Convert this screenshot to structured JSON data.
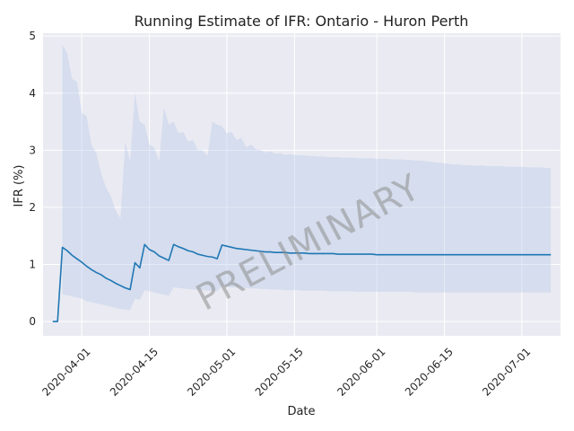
{
  "chart_data": {
    "type": "line",
    "title": "Running Estimate of IFR: Ontario - Huron Perth",
    "xlabel": "Date",
    "ylabel": "IFR (%)",
    "watermark": "PRELIMINARY",
    "x_start": "2020-03-26",
    "ylim": [
      -0.25,
      5.05
    ],
    "xlim": [
      "2020-03-24",
      "2020-07-09"
    ],
    "y_ticks": [
      0,
      1,
      2,
      3,
      4,
      5
    ],
    "x_ticks": [
      "2020-04-01",
      "2020-04-15",
      "2020-05-01",
      "2020-05-15",
      "2020-06-01",
      "2020-06-15",
      "2020-07-01"
    ],
    "grid": true,
    "colors": {
      "line": "#1f77b4",
      "band": "#aec7e8",
      "background": "#eaeaf2",
      "grid": "#ffffff"
    },
    "series": [
      {
        "name": "",
        "values": [
          0,
          0,
          1.3,
          1.24,
          1.16,
          1.1,
          1.04,
          0.97,
          0.91,
          0.86,
          0.82,
          0.76,
          0.72,
          0.67,
          0.63,
          0.59,
          0.56,
          1.03,
          0.94,
          1.35,
          1.26,
          1.22,
          1.15,
          1.11,
          1.07,
          1.35,
          1.31,
          1.28,
          1.24,
          1.22,
          1.18,
          1.16,
          1.14,
          1.13,
          1.1,
          1.34,
          1.32,
          1.3,
          1.28,
          1.27,
          1.26,
          1.25,
          1.24,
          1.23,
          1.22,
          1.22,
          1.21,
          1.21,
          1.21,
          1.2,
          1.2,
          1.2,
          1.2,
          1.19,
          1.19,
          1.19,
          1.19,
          1.19,
          1.19,
          1.18,
          1.18,
          1.18,
          1.18,
          1.18,
          1.18,
          1.18,
          1.18,
          1.17,
          1.17,
          1.17,
          1.17,
          1.17,
          1.17,
          1.17,
          1.17,
          1.17,
          1.17,
          1.17,
          1.17,
          1.17,
          1.17,
          1.17,
          1.17,
          1.17,
          1.17,
          1.17,
          1.17,
          1.17,
          1.17,
          1.17,
          1.17,
          1.17,
          1.17,
          1.17,
          1.17,
          1.17,
          1.17,
          1.17,
          1.17,
          1.17,
          1.17,
          1.17,
          1.17,
          1.17
        ],
        "lower": [
          null,
          null,
          0.48,
          0.46,
          0.44,
          0.42,
          0.4,
          0.36,
          0.34,
          0.32,
          0.3,
          0.28,
          0.26,
          0.24,
          0.22,
          0.21,
          0.2,
          0.4,
          0.38,
          0.55,
          0.53,
          0.51,
          0.49,
          0.47,
          0.45,
          0.6,
          0.59,
          0.58,
          0.57,
          0.56,
          0.55,
          0.55,
          0.54,
          0.54,
          0.53,
          0.62,
          0.61,
          0.6,
          0.6,
          0.59,
          0.59,
          0.58,
          0.58,
          0.57,
          0.57,
          0.56,
          0.56,
          0.56,
          0.55,
          0.55,
          0.55,
          0.55,
          0.54,
          0.54,
          0.54,
          0.54,
          0.54,
          0.53,
          0.53,
          0.53,
          0.53,
          0.53,
          0.53,
          0.52,
          0.52,
          0.52,
          0.52,
          0.52,
          0.52,
          0.52,
          0.52,
          0.52,
          0.52,
          0.52,
          0.52,
          0.51,
          0.51,
          0.51,
          0.51,
          0.51,
          0.51,
          0.51,
          0.51,
          0.51,
          0.51,
          0.51,
          0.51,
          0.51,
          0.51,
          0.51,
          0.51,
          0.51,
          0.51,
          0.51,
          0.51,
          0.51,
          0.51,
          0.51,
          0.51,
          0.51,
          0.51,
          0.51,
          0.51,
          0.51
        ],
        "upper": [
          null,
          null,
          4.85,
          4.7,
          4.25,
          4.2,
          3.65,
          3.6,
          3.1,
          2.95,
          2.6,
          2.35,
          2.2,
          1.95,
          1.8,
          3.15,
          2.8,
          4.0,
          3.5,
          3.45,
          3.1,
          3.05,
          2.8,
          3.75,
          3.45,
          3.5,
          3.3,
          3.32,
          3.15,
          3.18,
          3.0,
          3.0,
          2.9,
          3.5,
          3.45,
          3.42,
          3.3,
          3.32,
          3.18,
          3.22,
          3.05,
          3.1,
          3.02,
          3.0,
          2.96,
          2.98,
          2.94,
          2.95,
          2.92,
          2.93,
          2.92,
          2.91,
          2.91,
          2.9,
          2.9,
          2.89,
          2.89,
          2.88,
          2.88,
          2.88,
          2.87,
          2.87,
          2.87,
          2.86,
          2.86,
          2.86,
          2.86,
          2.85,
          2.85,
          2.85,
          2.84,
          2.84,
          2.84,
          2.83,
          2.83,
          2.82,
          2.82,
          2.81,
          2.8,
          2.79,
          2.78,
          2.77,
          2.76,
          2.75,
          2.75,
          2.74,
          2.74,
          2.73,
          2.73,
          2.73,
          2.72,
          2.72,
          2.72,
          2.72,
          2.71,
          2.71,
          2.71,
          2.71,
          2.7,
          2.7,
          2.7,
          2.7,
          2.69,
          2.69
        ]
      }
    ]
  }
}
